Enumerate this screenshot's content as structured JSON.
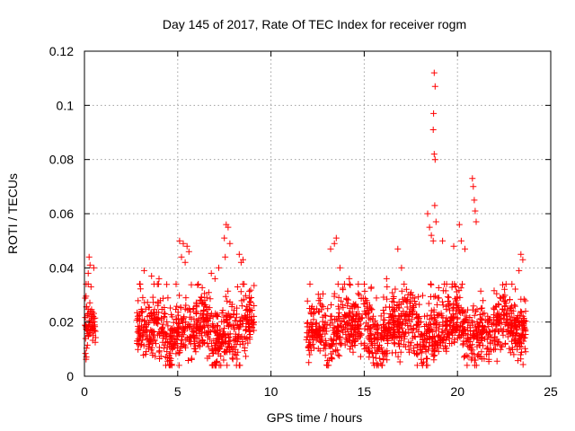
{
  "chart_data": {
    "type": "scatter",
    "title": "Day 145 of 2017, Rate Of TEC Index for receiver rogm",
    "xlabel": "GPS time / hours",
    "ylabel": "ROTI / TECUs",
    "xlim": [
      0,
      25
    ],
    "ylim": [
      0,
      0.12
    ],
    "xticks": [
      0,
      5,
      10,
      15,
      20,
      25
    ],
    "yticks": [
      0,
      0.02,
      0.04,
      0.06,
      0.08,
      0.1,
      0.12
    ],
    "xtick_labels": [
      "0",
      "5",
      "10",
      "15",
      "20",
      "25"
    ],
    "ytick_labels": [
      "0",
      "0.02",
      "0.04",
      "0.06",
      "0.08",
      "0.1",
      "0.12"
    ],
    "grid": true,
    "marker": "+",
    "color": "#ff0000",
    "segments": [
      {
        "x_start": 0.0,
        "x_end": 0.6,
        "base": 0.015,
        "spread": 0.006
      },
      {
        "x_start": 2.8,
        "x_end": 9.1,
        "base": 0.016,
        "spread": 0.008
      },
      {
        "x_start": 11.9,
        "x_end": 23.7,
        "base": 0.017,
        "spread": 0.008
      }
    ],
    "peaks": [
      {
        "x": 0.25,
        "y": 0.044
      },
      {
        "x": 0.3,
        "y": 0.041
      },
      {
        "x": 0.2,
        "y": 0.038
      },
      {
        "x": 0.5,
        "y": 0.04
      },
      {
        "x": 0.35,
        "y": 0.033
      },
      {
        "x": 3.2,
        "y": 0.039
      },
      {
        "x": 3.6,
        "y": 0.037
      },
      {
        "x": 4.0,
        "y": 0.036
      },
      {
        "x": 5.1,
        "y": 0.05
      },
      {
        "x": 5.3,
        "y": 0.049
      },
      {
        "x": 5.5,
        "y": 0.048
      },
      {
        "x": 5.6,
        "y": 0.046
      },
      {
        "x": 5.2,
        "y": 0.044
      },
      {
        "x": 5.4,
        "y": 0.042
      },
      {
        "x": 6.8,
        "y": 0.038
      },
      {
        "x": 7.2,
        "y": 0.04
      },
      {
        "x": 7.0,
        "y": 0.036
      },
      {
        "x": 7.5,
        "y": 0.051
      },
      {
        "x": 7.6,
        "y": 0.056
      },
      {
        "x": 7.7,
        "y": 0.055
      },
      {
        "x": 7.8,
        "y": 0.049
      },
      {
        "x": 7.55,
        "y": 0.044
      },
      {
        "x": 8.3,
        "y": 0.045
      },
      {
        "x": 8.4,
        "y": 0.042
      },
      {
        "x": 8.5,
        "y": 0.043
      },
      {
        "x": 13.2,
        "y": 0.047
      },
      {
        "x": 13.4,
        "y": 0.049
      },
      {
        "x": 13.5,
        "y": 0.051
      },
      {
        "x": 13.7,
        "y": 0.04
      },
      {
        "x": 14.2,
        "y": 0.036
      },
      {
        "x": 16.2,
        "y": 0.036
      },
      {
        "x": 16.8,
        "y": 0.047
      },
      {
        "x": 17.0,
        "y": 0.04
      },
      {
        "x": 18.4,
        "y": 0.06
      },
      {
        "x": 18.5,
        "y": 0.055
      },
      {
        "x": 18.6,
        "y": 0.052
      },
      {
        "x": 18.7,
        "y": 0.05
      },
      {
        "x": 18.75,
        "y": 0.112
      },
      {
        "x": 18.8,
        "y": 0.107
      },
      {
        "x": 18.72,
        "y": 0.097
      },
      {
        "x": 18.7,
        "y": 0.091
      },
      {
        "x": 18.75,
        "y": 0.082
      },
      {
        "x": 18.8,
        "y": 0.08
      },
      {
        "x": 18.78,
        "y": 0.063
      },
      {
        "x": 18.85,
        "y": 0.057
      },
      {
        "x": 19.2,
        "y": 0.05
      },
      {
        "x": 19.8,
        "y": 0.048
      },
      {
        "x": 20.1,
        "y": 0.056
      },
      {
        "x": 20.2,
        "y": 0.05
      },
      {
        "x": 20.4,
        "y": 0.047
      },
      {
        "x": 20.8,
        "y": 0.073
      },
      {
        "x": 20.85,
        "y": 0.07
      },
      {
        "x": 20.9,
        "y": 0.065
      },
      {
        "x": 20.95,
        "y": 0.061
      },
      {
        "x": 21.0,
        "y": 0.057
      },
      {
        "x": 23.4,
        "y": 0.045
      },
      {
        "x": 23.5,
        "y": 0.043
      },
      {
        "x": 23.3,
        "y": 0.039
      }
    ]
  }
}
